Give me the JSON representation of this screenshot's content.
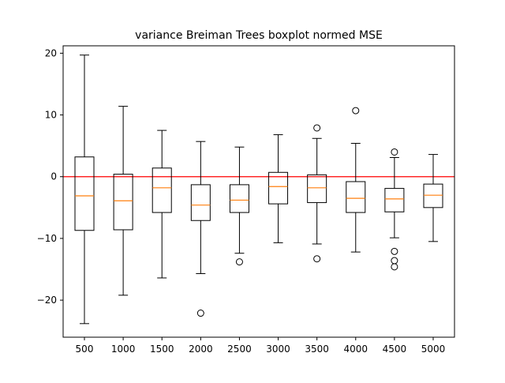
{
  "chart_data": {
    "type": "boxplot",
    "title": "variance Breiman Trees boxplot normed MSE",
    "xlabel": "",
    "ylabel": "",
    "categories": [
      "500",
      "1000",
      "1500",
      "2000",
      "2500",
      "3000",
      "3500",
      "4000",
      "4500",
      "5000"
    ],
    "ylim": [
      -26.0,
      21.2
    ],
    "yticks": [
      {
        "value": 20,
        "label": "20"
      },
      {
        "value": 10,
        "label": "10"
      },
      {
        "value": 0,
        "label": "0"
      },
      {
        "value": -10,
        "label": "−10"
      },
      {
        "value": -20,
        "label": "−20"
      }
    ],
    "grid": false,
    "reference_line": {
      "y": 0,
      "color": "#ff0000"
    },
    "boxes": [
      {
        "category": "500",
        "whisker_low": -23.8,
        "q1": -8.7,
        "median": -3.1,
        "q3": 3.2,
        "whisker_high": 19.7,
        "outliers": []
      },
      {
        "category": "1000",
        "whisker_low": -19.2,
        "q1": -8.6,
        "median": -3.9,
        "q3": 0.4,
        "whisker_high": 11.4,
        "outliers": []
      },
      {
        "category": "1500",
        "whisker_low": -16.4,
        "q1": -5.8,
        "median": -1.8,
        "q3": 1.4,
        "whisker_high": 7.5,
        "outliers": []
      },
      {
        "category": "2000",
        "whisker_low": -15.7,
        "q1": -7.1,
        "median": -4.6,
        "q3": -1.3,
        "whisker_high": 5.7,
        "outliers": [
          -22.1
        ]
      },
      {
        "category": "2500",
        "whisker_low": -12.4,
        "q1": -5.8,
        "median": -3.8,
        "q3": -1.3,
        "whisker_high": 4.8,
        "outliers": [
          -13.8
        ]
      },
      {
        "category": "3000",
        "whisker_low": -10.7,
        "q1": -4.4,
        "median": -1.6,
        "q3": 0.7,
        "whisker_high": 6.8,
        "outliers": []
      },
      {
        "category": "3500",
        "whisker_low": -10.9,
        "q1": -4.2,
        "median": -1.8,
        "q3": 0.3,
        "whisker_high": 6.2,
        "outliers": [
          7.9,
          -13.3
        ]
      },
      {
        "category": "4000",
        "whisker_low": -12.2,
        "q1": -5.8,
        "median": -3.5,
        "q3": -0.8,
        "whisker_high": 5.4,
        "outliers": [
          10.7
        ]
      },
      {
        "category": "4500",
        "whisker_low": -9.9,
        "q1": -5.7,
        "median": -3.6,
        "q3": -1.9,
        "whisker_high": 3.1,
        "outliers": [
          4.0,
          -12.1,
          -13.6,
          -14.6
        ]
      },
      {
        "category": "5000",
        "whisker_low": -10.5,
        "q1": -5.0,
        "median": -3.0,
        "q3": -1.2,
        "whisker_high": 3.6,
        "outliers": []
      }
    ],
    "colors": {
      "box": "#000000",
      "median": "#ff7f0e",
      "reference_line": "#ff0000",
      "axes": "#000000"
    }
  }
}
